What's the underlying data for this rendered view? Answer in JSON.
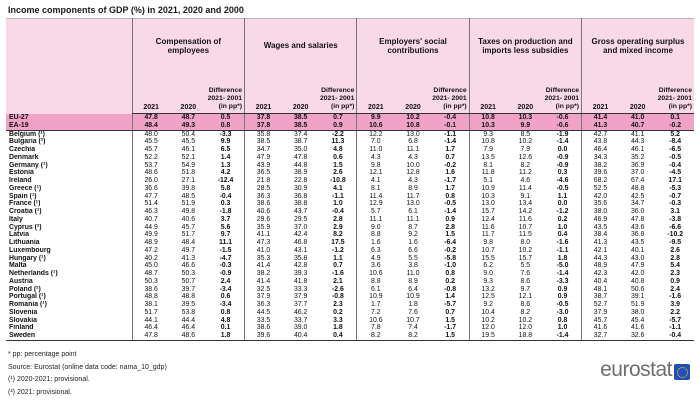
{
  "title": "Income components of GDP (%) in 2021, 2020 and 2000",
  "colors": {
    "header_pink": "#f9d9e8",
    "highlight_row_pink": "#f0a3c6",
    "logo_blue": "#2050b4",
    "border_dark": "#333333"
  },
  "chart_data": {
    "type": "table",
    "title": "Income components of GDP (%) in 2021, 2020 and 2000",
    "column_groups": [
      "Compensation of employees",
      "Wages and salaries",
      "Employers' social contributions",
      "Taxes on production and imports less subsidies",
      "Gross operating surplus and mixed income"
    ],
    "sub_columns": [
      "2021",
      "2020"
    ],
    "diff_header_lines": [
      "Difference",
      "2021- 2001",
      "(in pp*)"
    ],
    "rows": [
      {
        "label": "EU-27",
        "highlight": true,
        "values": [
          "47.8",
          "48.7",
          "0.5",
          "37.8",
          "38.5",
          "0.7",
          "9.9",
          "10.2",
          "-0.4",
          "10.8",
          "10.3",
          "-0.6",
          "41.4",
          "41.0",
          "0.1"
        ]
      },
      {
        "label": "EA-19",
        "highlight": true,
        "values": [
          "48.4",
          "49.3",
          "0.8",
          "37.8",
          "38.5",
          "0.9",
          "10.6",
          "10.8",
          "-0.1",
          "10.3",
          "9.9",
          "-0.6",
          "41.3",
          "40.7",
          "-0.2"
        ]
      },
      {
        "label": "Belgium (¹)",
        "highlight": false,
        "values": [
          "48.0",
          "50.4",
          "-3.3",
          "35.8",
          "37.4",
          "-2.2",
          "12.2",
          "13.0",
          "-1.1",
          "9.3",
          "8.5",
          "-1.9",
          "42.7",
          "41.1",
          "5.2"
        ]
      },
      {
        "label": "Bulgaria (²)",
        "highlight": false,
        "values": [
          "45.5",
          "45.5",
          "9.9",
          "38.5",
          "38.7",
          "11.3",
          "7.0",
          "6.8",
          "-1.4",
          "10.8",
          "10.2",
          "-1.4",
          "43.8",
          "44.3",
          "-8.4"
        ]
      },
      {
        "label": "Czechia",
        "highlight": false,
        "values": [
          "45.7",
          "46.1",
          "6.5",
          "34.7",
          "35.0",
          "4.8",
          "11.0",
          "11.1",
          "1.7",
          "7.9",
          "7.9",
          "0.0",
          "46.4",
          "46.1",
          "-6.5"
        ]
      },
      {
        "label": "Denmark",
        "highlight": false,
        "values": [
          "52.2",
          "52.1",
          "1.4",
          "47.9",
          "47.8",
          "0.6",
          "4.3",
          "4.3",
          "0.7",
          "13.5",
          "12.6",
          "-0.9",
          "34.3",
          "35.2",
          "-0.5"
        ]
      },
      {
        "label": "Germany (¹)",
        "highlight": false,
        "values": [
          "53.7",
          "54.9",
          "1.3",
          "43.9",
          "44.8",
          "1.5",
          "9.8",
          "10.0",
          "-0.2",
          "8.1",
          "8.2",
          "-0.9",
          "38.2",
          "36.9",
          "-0.4"
        ]
      },
      {
        "label": "Estonia",
        "highlight": false,
        "values": [
          "48.6",
          "51.8",
          "4.2",
          "36.5",
          "38.9",
          "2.6",
          "12.1",
          "12.8",
          "1.6",
          "11.8",
          "11.2",
          "0.3",
          "39.6",
          "37.0",
          "-4.5"
        ]
      },
      {
        "label": "Ireland",
        "highlight": false,
        "values": [
          "26.0",
          "27.1",
          "-12.4",
          "21.8",
          "22.8",
          "-10.8",
          "4.1",
          "4.3",
          "-1.7",
          "5.1",
          "4.6",
          "-4.6",
          "68.2",
          "67.4",
          "17.1"
        ]
      },
      {
        "label": "Greece (¹)",
        "highlight": false,
        "values": [
          "36.6",
          "39.8",
          "5.8",
          "28.5",
          "30.9",
          "4.1",
          "8.1",
          "8.9",
          "1.7",
          "10.9",
          "11.4",
          "-0.5",
          "52.5",
          "48.8",
          "-5.3"
        ]
      },
      {
        "label": "Spain (¹)",
        "highlight": false,
        "values": [
          "47.7",
          "48.5",
          "-0.4",
          "36.3",
          "36.8",
          "-1.1",
          "11.4",
          "11.7",
          "0.8",
          "10.3",
          "9.1",
          "1.1",
          "42.0",
          "42.5",
          "-0.7"
        ]
      },
      {
        "label": "France (¹)",
        "highlight": false,
        "values": [
          "51.4",
          "51.9",
          "0.3",
          "38.6",
          "38.8",
          "1.0",
          "12.9",
          "13.0",
          "-0.5",
          "13.0",
          "13.4",
          "0.0",
          "35.6",
          "34.7",
          "-0.3"
        ]
      },
      {
        "label": "Croatia (¹)",
        "highlight": false,
        "values": [
          "46.3",
          "49.8",
          "-1.8",
          "40.6",
          "43.7",
          "-0.4",
          "5.7",
          "6.1",
          "-1.4",
          "15.7",
          "14.2",
          "-1.2",
          "38.0",
          "36.0",
          "3.1"
        ]
      },
      {
        "label": "Italy",
        "highlight": false,
        "values": [
          "40.7",
          "40.6",
          "3.7",
          "29.6",
          "29.5",
          "2.8",
          "11.1",
          "11.1",
          "0.9",
          "12.4",
          "11.6",
          "0.2",
          "46.9",
          "47.8",
          "-3.8"
        ]
      },
      {
        "label": "Cyprus (²)",
        "highlight": false,
        "values": [
          "44.9",
          "45.7",
          "5.6",
          "35.9",
          "37.0",
          "2.9",
          "9.0",
          "8.7",
          "2.8",
          "11.6",
          "10.7",
          "1.0",
          "43.5",
          "43.6",
          "-6.6"
        ]
      },
      {
        "label": "Latvia",
        "highlight": false,
        "values": [
          "49.9",
          "51.7",
          "9.7",
          "41.1",
          "42.4",
          "8.2",
          "8.8",
          "9.2",
          "1.5",
          "11.7",
          "11.5",
          "0.4",
          "38.4",
          "36.8",
          "-10.2"
        ]
      },
      {
        "label": "Lithuania",
        "highlight": false,
        "values": [
          "48.9",
          "48.4",
          "11.1",
          "47.3",
          "46.8",
          "17.5",
          "1.6",
          "1.6",
          "-6.4",
          "9.8",
          "8.0",
          "-1.6",
          "41.3",
          "43.5",
          "-9.5"
        ]
      },
      {
        "label": "Luxembourg",
        "highlight": false,
        "values": [
          "47.2",
          "49.7",
          "-1.5",
          "41.0",
          "43.1",
          "-1.2",
          "6.3",
          "6.6",
          "-0.2",
          "10.7",
          "10.2",
          "-1.1",
          "42.1",
          "40.1",
          "2.6"
        ]
      },
      {
        "label": "Hungary (¹)",
        "highlight": false,
        "values": [
          "40.2",
          "41.3",
          "-4.7",
          "35.3",
          "35.8",
          "1.1",
          "4.9",
          "5.5",
          "-5.8",
          "15.5",
          "15.7",
          "1.8",
          "44.3",
          "43.0",
          "2.8"
        ]
      },
      {
        "label": "Malta",
        "highlight": false,
        "values": [
          "45.0",
          "46.6",
          "-0.3",
          "41.4",
          "42.8",
          "0.7",
          "3.6",
          "3.8",
          "-1.0",
          "6.2",
          "5.5",
          "-5.0",
          "48.9",
          "47.9",
          "5.4"
        ]
      },
      {
        "label": "Netherlands (¹)",
        "highlight": false,
        "values": [
          "48.7",
          "50.3",
          "-0.9",
          "38.2",
          "39.3",
          "-1.6",
          "10.6",
          "11.0",
          "0.8",
          "9.0",
          "7.6",
          "-1.4",
          "42.3",
          "42.0",
          "2.3"
        ]
      },
      {
        "label": "Austria",
        "highlight": false,
        "values": [
          "50.3",
          "50.7",
          "2.4",
          "41.4",
          "41.8",
          "2.1",
          "8.8",
          "8.9",
          "0.2",
          "9.3",
          "8.6",
          "-3.3",
          "40.4",
          "40.8",
          "0.9"
        ]
      },
      {
        "label": "Poland (²)",
        "highlight": false,
        "values": [
          "38.6",
          "39.7",
          "-3.4",
          "32.5",
          "33.3",
          "-2.6",
          "6.1",
          "6.4",
          "-0.8",
          "13.2",
          "9.7",
          "0.9",
          "48.1",
          "50.6",
          "2.4"
        ]
      },
      {
        "label": "Portugal (¹)",
        "highlight": false,
        "values": [
          "48.8",
          "48.8",
          "0.6",
          "37.9",
          "37.9",
          "-0.8",
          "10.9",
          "10.9",
          "1.4",
          "12.5",
          "12.1",
          "0.9",
          "38.7",
          "39.1",
          "-1.6"
        ]
      },
      {
        "label": "Romania (¹)",
        "highlight": false,
        "values": [
          "38.1",
          "39.5",
          "-3.4",
          "36.3",
          "37.7",
          "2.3",
          "1.7",
          "1.8",
          "-5.7",
          "9.2",
          "8.6",
          "-0.5",
          "52.7",
          "51.9",
          "3.9"
        ]
      },
      {
        "label": "Slovenia",
        "highlight": false,
        "values": [
          "51.7",
          "53.8",
          "0.8",
          "44.5",
          "46.2",
          "0.2",
          "7.2",
          "7.6",
          "0.7",
          "10.4",
          "8.2",
          "-3.0",
          "37.9",
          "38.0",
          "2.2"
        ]
      },
      {
        "label": "Slovakia",
        "highlight": false,
        "values": [
          "44.1",
          "44.4",
          "4.8",
          "33.5",
          "33.7",
          "3.3",
          "10.6",
          "10.7",
          "1.5",
          "10.2",
          "10.2",
          "0.8",
          "45.7",
          "45.4",
          "-5.7"
        ]
      },
      {
        "label": "Finland",
        "highlight": false,
        "values": [
          "46.4",
          "46.4",
          "0.1",
          "38.6",
          "39.0",
          "1.8",
          "7.8",
          "7.4",
          "-1.7",
          "12.0",
          "12.0",
          "1.0",
          "41.6",
          "41.6",
          "-1.1"
        ]
      },
      {
        "label": "Sweden",
        "highlight": false,
        "values": [
          "47.8",
          "48.6",
          "1.8",
          "39.6",
          "40.4",
          "0.4",
          "8.2",
          "8.2",
          "1.5",
          "19.5",
          "18.8",
          "-1.4",
          "32.7",
          "32.6",
          "-0.4"
        ]
      }
    ]
  },
  "footnotes": [
    "* pp: percentage point",
    "Source: Eurostat (online data code: nama_10_gdp)",
    "(¹) 2020-2021: provisional.",
    "(²) 2021: provisional."
  ],
  "logo": {
    "text": "eurostat"
  }
}
